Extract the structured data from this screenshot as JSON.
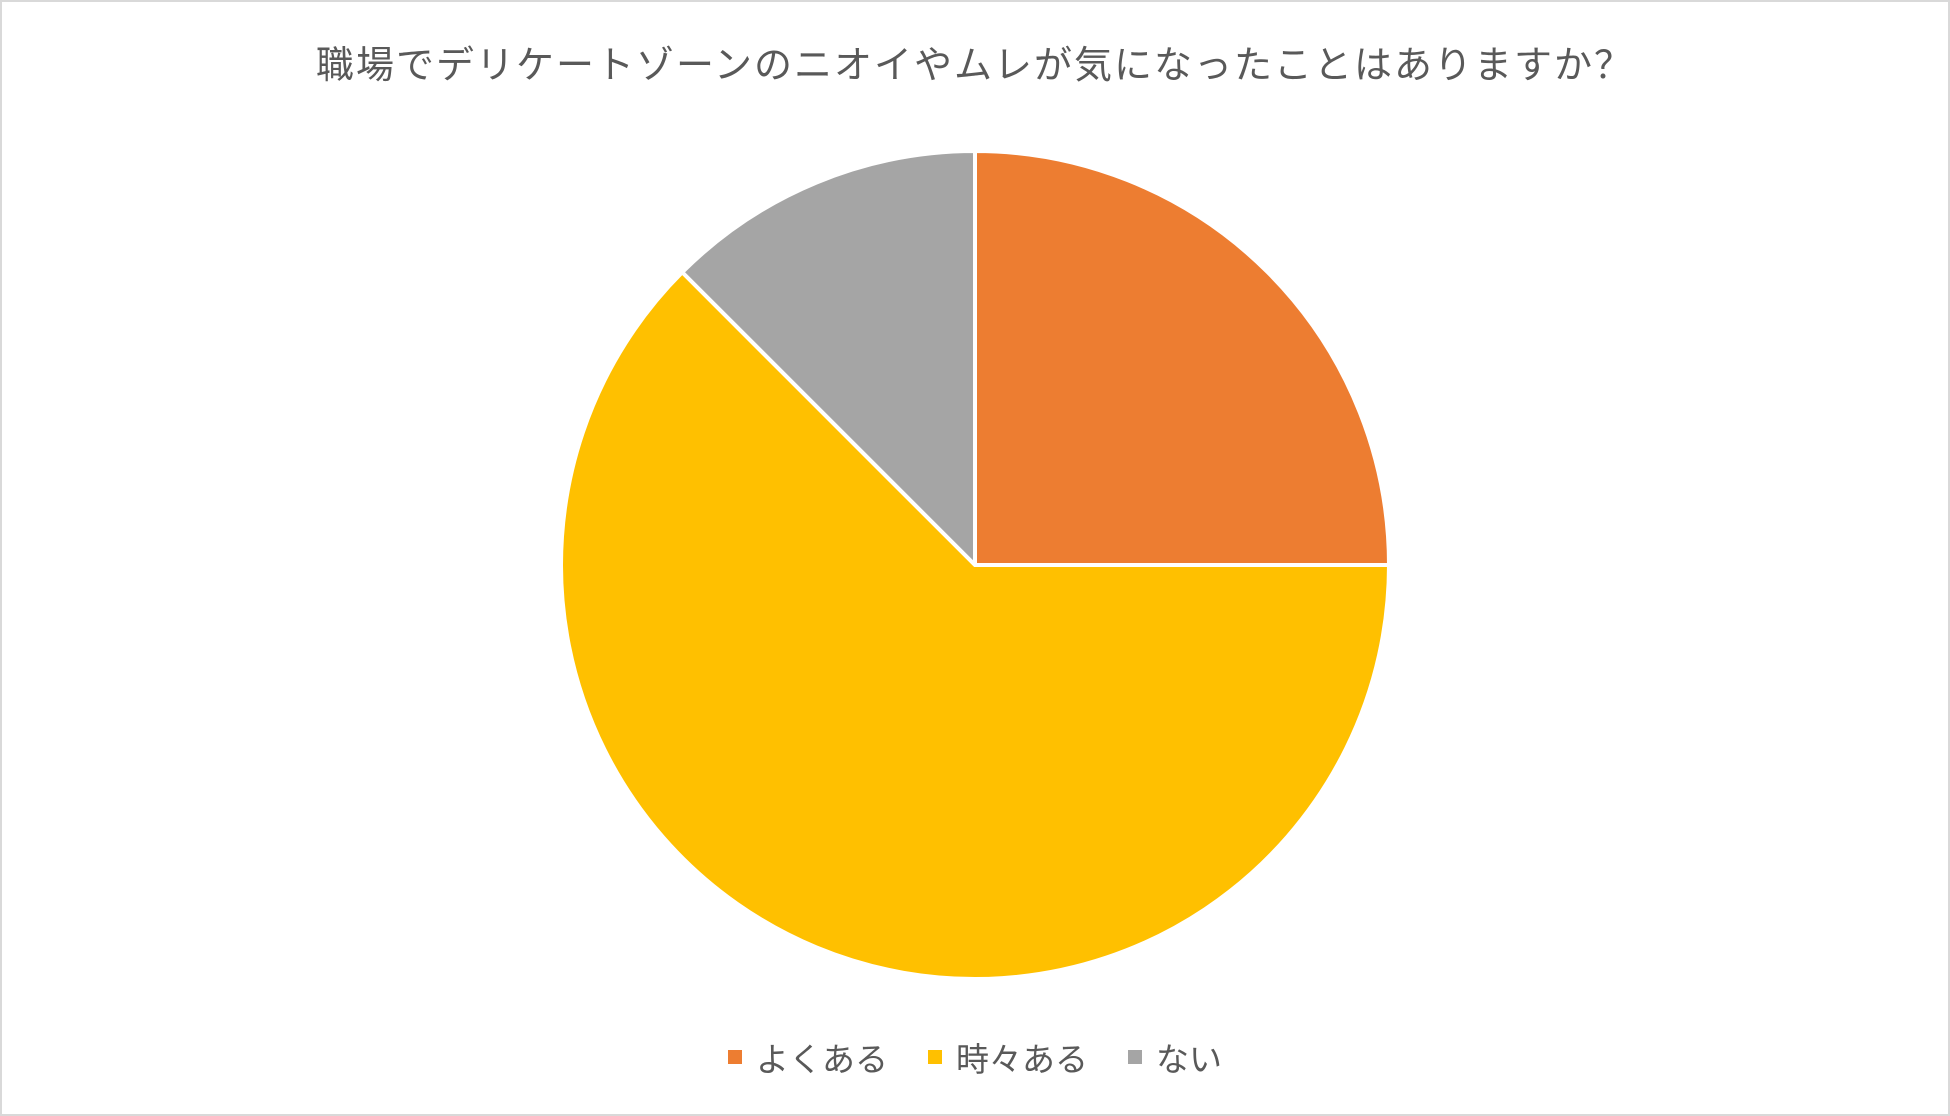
{
  "chart_data": {
    "type": "pie",
    "title": "職場でデリケートゾーンのニオイやムレが気になったことはありますか？",
    "slices": [
      {
        "label": "よくある",
        "value": 25,
        "color": "#ED7D31"
      },
      {
        "label": "時々ある",
        "value": 62.5,
        "color": "#FFC000"
      },
      {
        "label": "ない",
        "value": 12.5,
        "color": "#A5A5A5"
      }
    ],
    "legend_position": "bottom",
    "start_angle": "12 o'clock",
    "direction": "clockwise"
  }
}
